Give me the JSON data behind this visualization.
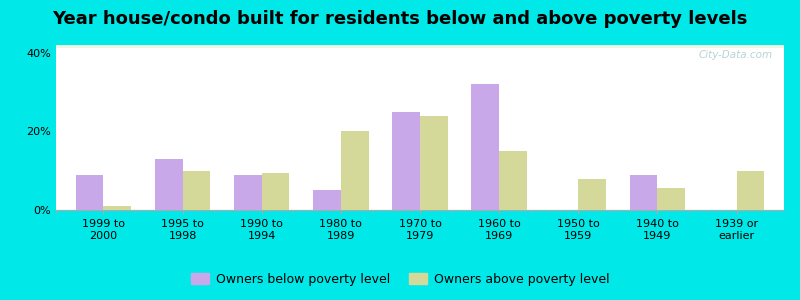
{
  "title": "Year house/condo built for residents below and above poverty levels",
  "categories": [
    "1999 to\n2000",
    "1995 to\n1998",
    "1990 to\n1994",
    "1980 to\n1989",
    "1970 to\n1979",
    "1960 to\n1969",
    "1950 to\n1959",
    "1940 to\n1949",
    "1939 or\nearlier"
  ],
  "below_poverty": [
    9.0,
    13.0,
    9.0,
    5.0,
    25.0,
    32.0,
    0.0,
    9.0,
    0.0
  ],
  "above_poverty": [
    1.0,
    10.0,
    9.5,
    20.0,
    24.0,
    15.0,
    8.0,
    5.5,
    10.0
  ],
  "below_color": "#c8a8e8",
  "above_color": "#d4d898",
  "background_outer": "#00e8e8",
  "background_inner_top": "#ddf5e8",
  "background_inner_bottom": "#eef8e0",
  "ylim": [
    0,
    42
  ],
  "yticks": [
    0,
    20,
    40
  ],
  "ytick_labels": [
    "0%",
    "20%",
    "40%"
  ],
  "bar_width": 0.35,
  "title_fontsize": 13,
  "tick_fontsize": 8,
  "legend_fontsize": 9,
  "legend_label_below": "Owners below poverty level",
  "legend_label_above": "Owners above poverty level",
  "watermark_text": "City-Data.com",
  "watermark_color": "#aacccc",
  "line_color_white": "#ffffff",
  "spine_color": "#aaaaaa"
}
